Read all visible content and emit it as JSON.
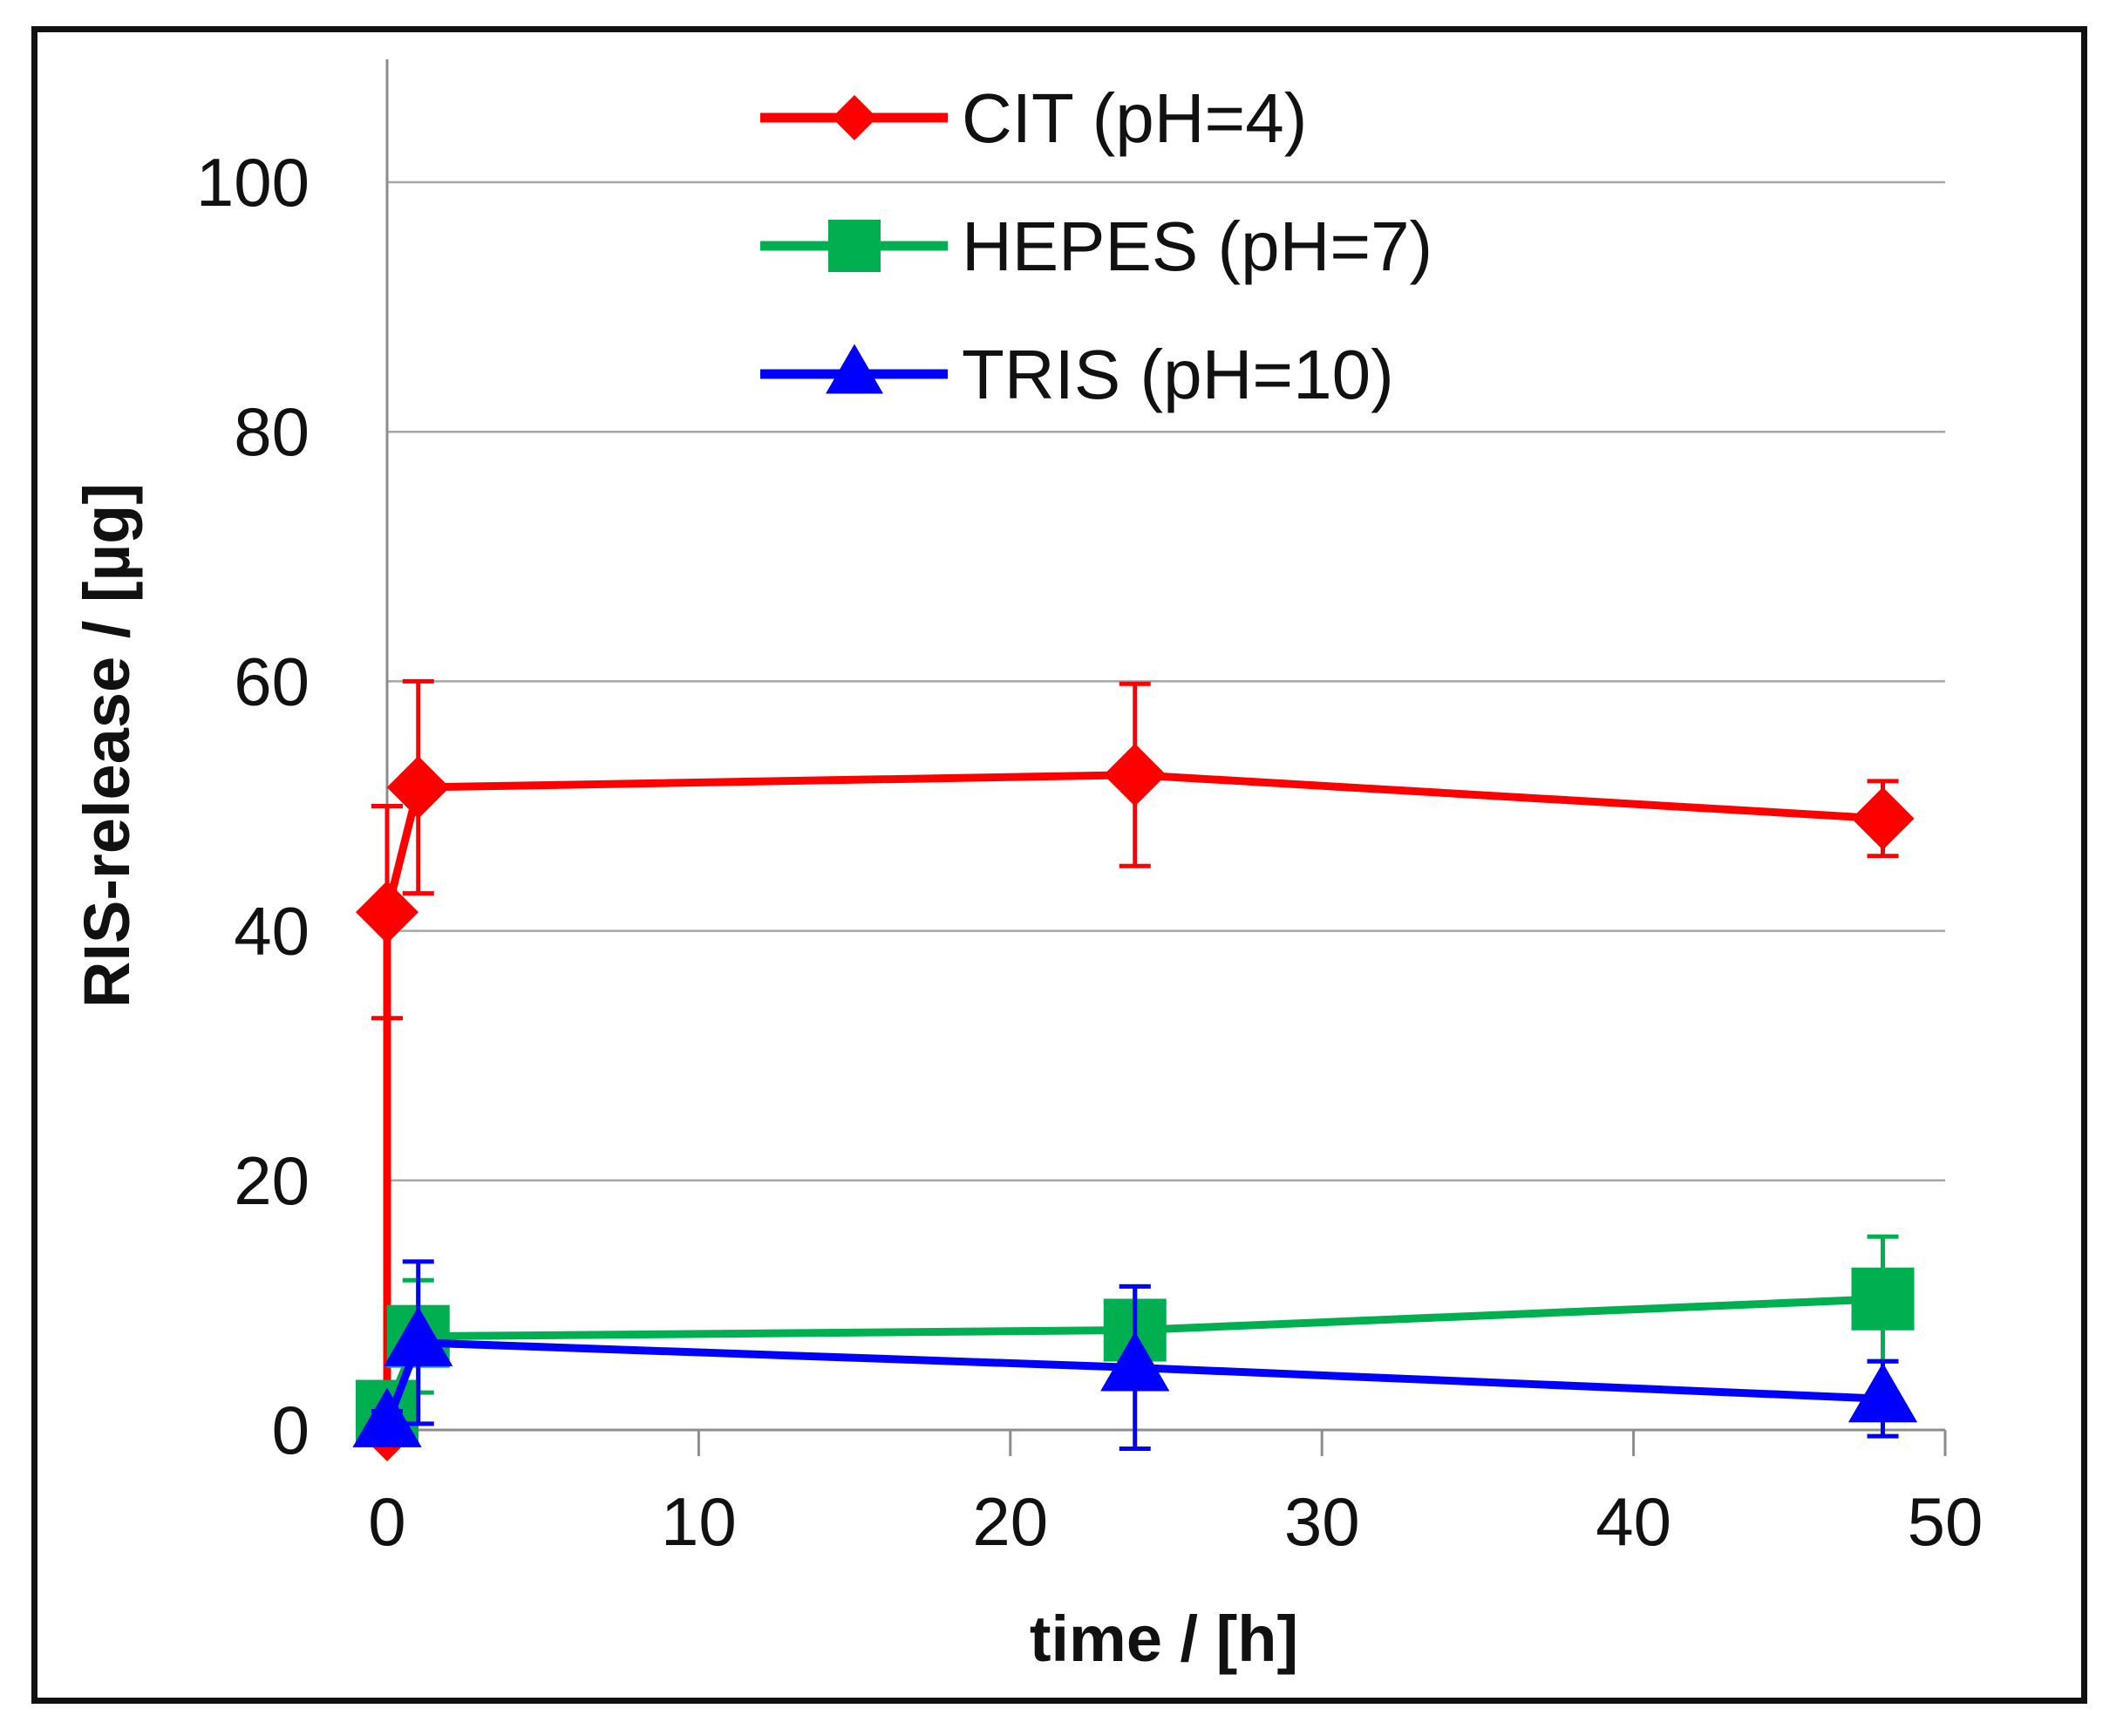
{
  "chart_data": {
    "type": "line",
    "title": "",
    "xlabel": "time / [h]",
    "ylabel": "RIS-release / [µg]",
    "xlim": [
      0,
      50
    ],
    "ylim": [
      0,
      110
    ],
    "xticks": [
      0,
      10,
      20,
      30,
      40,
      50
    ],
    "yticks": [
      0,
      20,
      40,
      60,
      80,
      100
    ],
    "grid": "horizontal",
    "legend_position": "top",
    "series": [
      {
        "name": "CIT (pH=4)",
        "color": "#ff0000",
        "marker": "diamond",
        "x": [
          0,
          0,
          1,
          24,
          48
        ],
        "y": [
          0,
          41.5,
          51.5,
          52.5,
          49
        ],
        "error": [
          0,
          8.5,
          8.5,
          7.3,
          3
        ]
      },
      {
        "name": "HEPES (pH=7)",
        "color": "#00b050",
        "marker": "square",
        "x": [
          0,
          1,
          24,
          48
        ],
        "y": [
          1.5,
          7.5,
          8,
          10.5
        ],
        "error": [
          1,
          4.5,
          3.5,
          5
        ]
      },
      {
        "name": "TRIS (pH=10)",
        "color": "#0000ff",
        "marker": "triangle",
        "x": [
          0,
          1,
          24,
          48
        ],
        "y": [
          0.5,
          7,
          5,
          2.5
        ],
        "error": [
          1,
          6.5,
          6.5,
          3
        ]
      }
    ]
  }
}
